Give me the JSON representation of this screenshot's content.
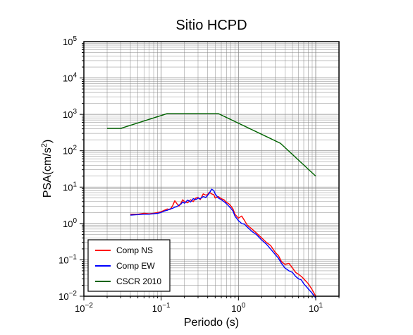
{
  "chart_data": {
    "type": "line",
    "title": "Sitio HCPD",
    "xlabel": "Periodo (s)",
    "ylabel_prefix": "PSA(cm/s",
    "ylabel_sup": "2",
    "ylabel_suffix": ")",
    "x_scale": "log",
    "y_scale": "log",
    "xlim": [
      0.01,
      20
    ],
    "ylim": [
      0.01,
      100000
    ],
    "grid": true,
    "legend_position": "bottom-left",
    "x_ticks": [
      {
        "value": 0.01,
        "base": "10",
        "exp": "−2"
      },
      {
        "value": 0.1,
        "base": "10",
        "exp": "−1"
      },
      {
        "value": 1,
        "base": "10",
        "exp": "0"
      },
      {
        "value": 10,
        "base": "10",
        "exp": "1"
      }
    ],
    "y_ticks": [
      {
        "value": 0.01,
        "base": "10",
        "exp": "−2"
      },
      {
        "value": 0.1,
        "base": "10",
        "exp": "−1"
      },
      {
        "value": 1,
        "base": "10",
        "exp": "0"
      },
      {
        "value": 10,
        "base": "10",
        "exp": "1"
      },
      {
        "value": 100,
        "base": "10",
        "exp": "2"
      },
      {
        "value": 1000,
        "base": "10",
        "exp": "3"
      },
      {
        "value": 10000,
        "base": "10",
        "exp": "4"
      },
      {
        "value": 100000,
        "base": "10",
        "exp": "5"
      }
    ],
    "series": [
      {
        "name": "Comp NS",
        "color": "#ff0000",
        "points": [
          [
            0.04,
            1.8
          ],
          [
            0.05,
            1.8
          ],
          [
            0.06,
            1.9
          ],
          [
            0.07,
            1.85
          ],
          [
            0.08,
            1.9
          ],
          [
            0.09,
            2.0
          ],
          [
            0.1,
            2.1
          ],
          [
            0.11,
            2.3
          ],
          [
            0.12,
            2.5
          ],
          [
            0.13,
            2.4
          ],
          [
            0.14,
            3.0
          ],
          [
            0.15,
            4.2
          ],
          [
            0.16,
            3.5
          ],
          [
            0.17,
            3.0
          ],
          [
            0.18,
            3.6
          ],
          [
            0.19,
            4.5
          ],
          [
            0.2,
            4.0
          ],
          [
            0.22,
            3.7
          ],
          [
            0.24,
            4.5
          ],
          [
            0.26,
            4.0
          ],
          [
            0.28,
            5.0
          ],
          [
            0.3,
            5.2
          ],
          [
            0.32,
            4.5
          ],
          [
            0.35,
            6.5
          ],
          [
            0.38,
            6.0
          ],
          [
            0.4,
            6.3
          ],
          [
            0.42,
            7.2
          ],
          [
            0.45,
            6.5
          ],
          [
            0.48,
            6.2
          ],
          [
            0.5,
            5.0
          ],
          [
            0.55,
            5.5
          ],
          [
            0.6,
            4.8
          ],
          [
            0.65,
            4.5
          ],
          [
            0.7,
            3.8
          ],
          [
            0.75,
            3.5
          ],
          [
            0.8,
            3.0
          ],
          [
            0.85,
            2.5
          ],
          [
            0.9,
            1.8
          ],
          [
            1.0,
            1.4
          ],
          [
            1.1,
            1.6
          ],
          [
            1.2,
            1.2
          ],
          [
            1.3,
            0.9
          ],
          [
            1.5,
            0.7
          ],
          [
            1.7,
            0.55
          ],
          [
            2.0,
            0.4
          ],
          [
            2.3,
            0.3
          ],
          [
            2.6,
            0.25
          ],
          [
            3.0,
            0.16
          ],
          [
            3.3,
            0.13
          ],
          [
            3.6,
            0.09
          ],
          [
            4.0,
            0.075
          ],
          [
            4.5,
            0.08
          ],
          [
            5.0,
            0.06
          ],
          [
            5.5,
            0.045
          ],
          [
            6.0,
            0.04
          ],
          [
            6.5,
            0.035
          ],
          [
            7.0,
            0.03
          ],
          [
            8.0,
            0.022
          ],
          [
            9.0,
            0.015
          ],
          [
            10.0,
            0.01
          ]
        ]
      },
      {
        "name": "Comp EW",
        "color": "#0000ff",
        "points": [
          [
            0.04,
            1.7
          ],
          [
            0.05,
            1.75
          ],
          [
            0.06,
            1.8
          ],
          [
            0.07,
            1.8
          ],
          [
            0.08,
            1.85
          ],
          [
            0.09,
            1.9
          ],
          [
            0.1,
            2.0
          ],
          [
            0.11,
            2.2
          ],
          [
            0.12,
            2.3
          ],
          [
            0.13,
            2.5
          ],
          [
            0.14,
            2.6
          ],
          [
            0.15,
            2.8
          ],
          [
            0.16,
            2.9
          ],
          [
            0.17,
            3.2
          ],
          [
            0.18,
            3.4
          ],
          [
            0.19,
            3.9
          ],
          [
            0.2,
            3.6
          ],
          [
            0.22,
            4.4
          ],
          [
            0.24,
            3.9
          ],
          [
            0.26,
            4.8
          ],
          [
            0.28,
            4.5
          ],
          [
            0.3,
            5.0
          ],
          [
            0.32,
            4.8
          ],
          [
            0.35,
            5.5
          ],
          [
            0.38,
            5.2
          ],
          [
            0.4,
            6.0
          ],
          [
            0.42,
            6.8
          ],
          [
            0.45,
            8.8
          ],
          [
            0.48,
            8.0
          ],
          [
            0.5,
            6.5
          ],
          [
            0.55,
            5.0
          ],
          [
            0.6,
            4.5
          ],
          [
            0.65,
            4.0
          ],
          [
            0.7,
            3.5
          ],
          [
            0.75,
            3.0
          ],
          [
            0.8,
            2.6
          ],
          [
            0.85,
            2.2
          ],
          [
            0.9,
            1.6
          ],
          [
            1.0,
            1.2
          ],
          [
            1.1,
            1.0
          ],
          [
            1.2,
            0.95
          ],
          [
            1.3,
            0.8
          ],
          [
            1.5,
            0.6
          ],
          [
            1.7,
            0.5
          ],
          [
            2.0,
            0.35
          ],
          [
            2.3,
            0.27
          ],
          [
            2.6,
            0.2
          ],
          [
            3.0,
            0.14
          ],
          [
            3.3,
            0.11
          ],
          [
            3.6,
            0.08
          ],
          [
            4.0,
            0.06
          ],
          [
            4.5,
            0.05
          ],
          [
            5.0,
            0.045
          ],
          [
            5.5,
            0.035
          ],
          [
            6.0,
            0.03
          ],
          [
            6.5,
            0.028
          ],
          [
            7.0,
            0.022
          ],
          [
            8.0,
            0.016
          ],
          [
            9.0,
            0.012
          ],
          [
            10.0,
            0.009
          ]
        ]
      },
      {
        "name": "CSCR 2010",
        "color": "#006400",
        "points": [
          [
            0.02,
            410
          ],
          [
            0.03,
            410
          ],
          [
            0.12,
            1050
          ],
          [
            0.55,
            1050
          ],
          [
            3.5,
            160
          ],
          [
            10.0,
            20
          ]
        ]
      }
    ]
  }
}
